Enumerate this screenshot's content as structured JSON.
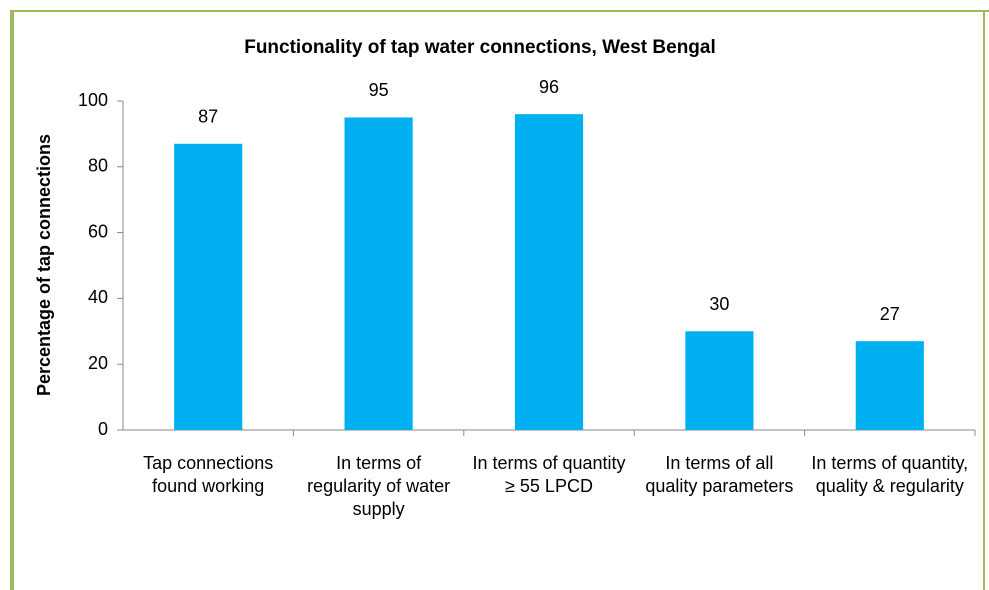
{
  "chart_data": {
    "type": "bar",
    "title": "Functionality of tap water connections, West Bengal",
    "y_label": "Percentage of tap connections",
    "categories": [
      "Tap connections found working",
      "In terms of regularity of water supply",
      "In terms of quantity ≥ 55 LPCD",
      "In terms of all quality parameters",
      "In terms of quantity, quality & regularity"
    ],
    "values": [
      87,
      95,
      96,
      30,
      27
    ],
    "color": "#00b0f0",
    "ylim": [
      0,
      100
    ],
    "yticks": [
      0,
      20,
      40,
      60,
      80,
      100
    ],
    "grid": false
  }
}
